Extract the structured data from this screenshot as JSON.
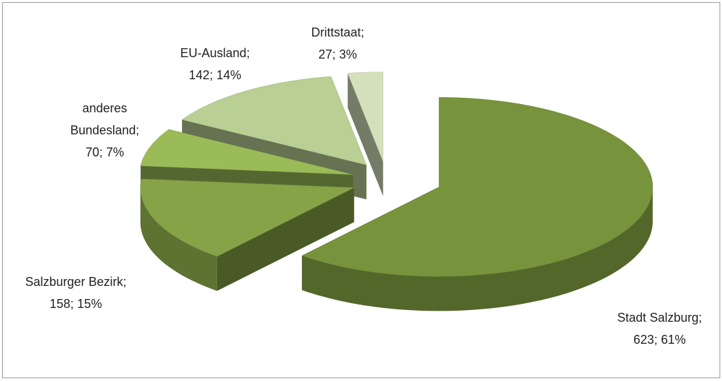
{
  "chart_data": {
    "type": "pie3d",
    "values": [
      623,
      158,
      70,
      142,
      27
    ],
    "value_labels": [
      [
        "Stadt Salzburg;",
        "623; 61%"
      ],
      [
        "Salzburger Bezirk;",
        "158; 15%"
      ],
      [
        "anderes",
        "Bundesland;",
        "70; 7%"
      ],
      [
        "EU-Ausland;",
        "142; 14%"
      ],
      [
        "Drittstaat;",
        "27; 3%"
      ]
    ],
    "colors": [
      "#77933c",
      "#86a347",
      "#9bbb59",
      "#b9cf93",
      "#d3e0bb"
    ]
  }
}
